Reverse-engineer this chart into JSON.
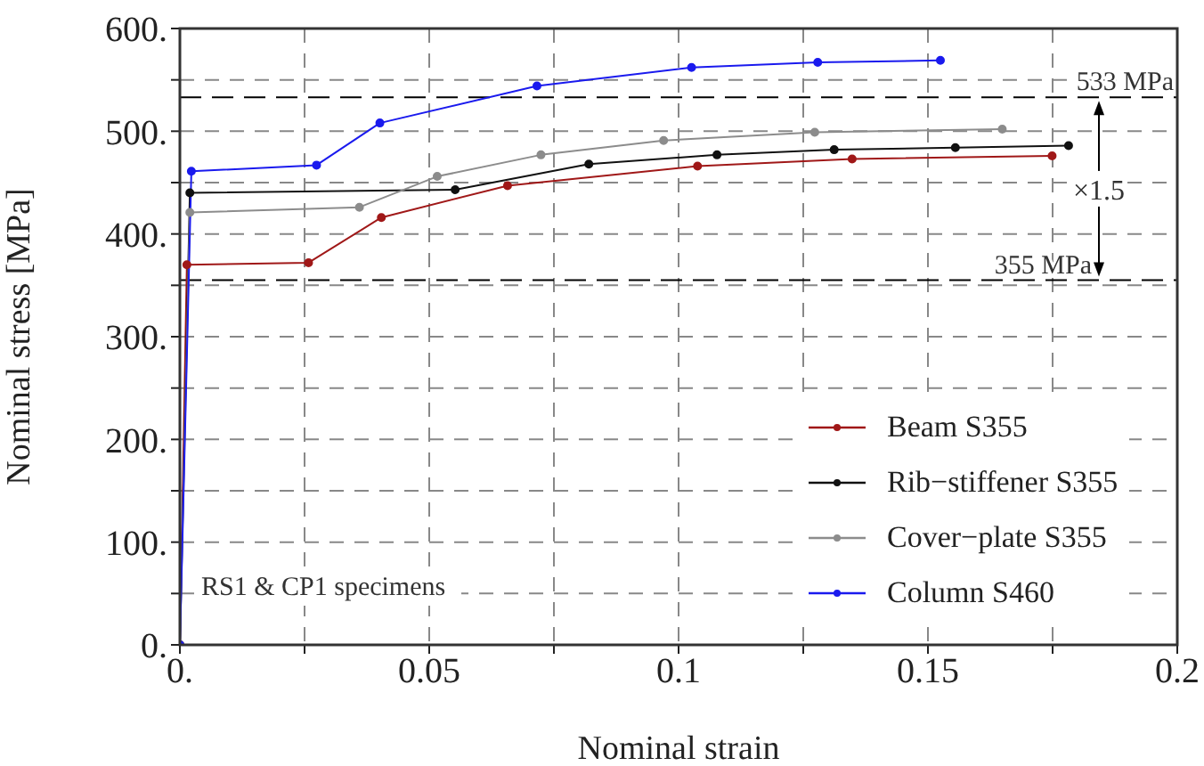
{
  "chart_data": {
    "type": "line",
    "xlabel": "Nominal strain",
    "ylabel": "Nominal stress [MPa]",
    "xlim": [
      0,
      0.2
    ],
    "ylim": [
      0,
      600
    ],
    "xticks": [
      {
        "value": 0,
        "label": "0."
      },
      {
        "value": 0.025,
        "label": null
      },
      0.05,
      {
        "value": 0.075,
        "label": null
      },
      0.1,
      {
        "value": 0.125,
        "label": null
      },
      0.15,
      {
        "value": 0.175,
        "label": null
      },
      0.2
    ],
    "yticks": [
      {
        "value": 0,
        "label": "0."
      },
      {
        "value": 50,
        "label": null
      },
      {
        "value": 100,
        "label": "100."
      },
      {
        "value": 150,
        "label": null
      },
      {
        "value": 200,
        "label": "200."
      },
      {
        "value": 250,
        "label": null
      },
      {
        "value": 300,
        "label": "300."
      },
      {
        "value": 350,
        "label": null
      },
      {
        "value": 400,
        "label": "400."
      },
      {
        "value": 450,
        "label": null
      },
      {
        "value": 500,
        "label": "500."
      },
      {
        "value": 550,
        "label": null
      },
      {
        "value": 600,
        "label": "600."
      }
    ],
    "grid": true,
    "legend": "bottom right",
    "marker": "circle",
    "line_style": "solid",
    "series": [
      {
        "name": "Beam S355",
        "color": "#a01818",
        "x": [
          0,
          0.0014,
          0.0258,
          0.0404,
          0.0657,
          0.1038,
          0.1348,
          0.1749
        ],
        "values": [
          0,
          370,
          372,
          416,
          447,
          466,
          473,
          476
        ]
      },
      {
        "name": "Rib−stiffener S355",
        "color": "#111111",
        "x": [
          0,
          0.002,
          0.0552,
          0.082,
          0.1077,
          0.1312,
          0.1555,
          0.1782
        ],
        "values": [
          0,
          440,
          443,
          468,
          477,
          482,
          484,
          486
        ]
      },
      {
        "name": "Cover−plate S355",
        "color": "#8c8c8c",
        "x": [
          0,
          0.002,
          0.036,
          0.0516,
          0.0724,
          0.097,
          0.1273,
          0.1649
        ],
        "values": [
          0,
          421,
          426,
          456,
          477,
          491,
          499,
          502
        ]
      },
      {
        "name": "Column S460",
        "color": "#1a1aee",
        "x": [
          0,
          0.0023,
          0.0274,
          0.0401,
          0.0716,
          0.1026,
          0.1279,
          0.1525
        ],
        "values": [
          0,
          461,
          467,
          508,
          544,
          562,
          567,
          569
        ]
      }
    ],
    "ref_lines": [
      {
        "axis": "y",
        "value": 533,
        "label": "533 MPa",
        "color": "#000000",
        "line_style": "dashed"
      },
      {
        "axis": "y",
        "value": 355,
        "label": "355 MPa",
        "color": "#000000",
        "line_style": "dashed"
      }
    ],
    "annotations": [
      "RS1 & CP1 specimens",
      "×1.5"
    ]
  }
}
